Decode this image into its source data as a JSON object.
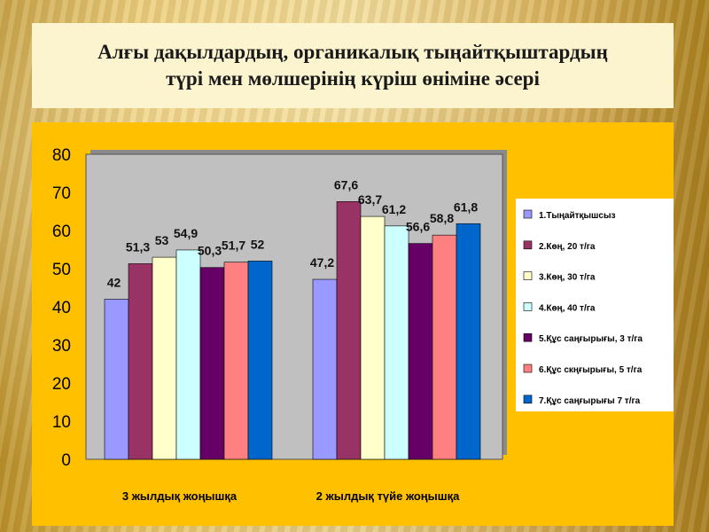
{
  "title_line1": "Алғы дақылдардың, органикалық тыңайтқыштардың",
  "title_line2": "түрі мен мөлшерінің күріш өніміне әсері",
  "colors": {
    "title_bg": "#fbf4cf",
    "panel_bg": "#ffc000",
    "plot_bg": "#c0c0c0"
  },
  "chart_data": {
    "type": "bar",
    "categories": [
      "3 жылдық жоңышқа",
      "2 жылдық түйе жоңышқа"
    ],
    "ylim": [
      0,
      80
    ],
    "yticks": [
      "0",
      "10",
      "20",
      "30",
      "40",
      "50",
      "60",
      "70",
      "80"
    ],
    "grid": false,
    "legend_position": "right",
    "series": [
      {
        "name": "1.Тыңайтқышсыз",
        "color": "#9999ff",
        "values": [
          42,
          47.2
        ],
        "labels": [
          "42",
          "47,2"
        ]
      },
      {
        "name": "2.Көң, 20 т/га",
        "color": "#993366",
        "values": [
          51.3,
          67.6
        ],
        "labels": [
          "51,3",
          "67,6"
        ]
      },
      {
        "name": "3.Көң, 30 т/га",
        "color": "#ffffcc",
        "values": [
          53,
          63.7
        ],
        "labels": [
          "53",
          "63,7"
        ]
      },
      {
        "name": "4.Көң, 40 т/га",
        "color": "#ccffff",
        "values": [
          54.9,
          61.2
        ],
        "labels": [
          "54,9",
          "61,2"
        ]
      },
      {
        "name": "5.Құс саңғырығы, 3 т/га",
        "color": "#660066",
        "values": [
          50.3,
          56.6
        ],
        "labels": [
          "50,3",
          "56,6"
        ]
      },
      {
        "name": "6.Құс скңғырығы, 5 т/га",
        "color": "#ff8080",
        "values": [
          51.7,
          58.8
        ],
        "labels": [
          "51,7",
          "58,8"
        ]
      },
      {
        "name": "7.Құс саңғырығы 7 т/га",
        "color": "#0066cc",
        "values": [
          52,
          61.8
        ],
        "labels": [
          "52",
          "61,8"
        ]
      }
    ]
  }
}
